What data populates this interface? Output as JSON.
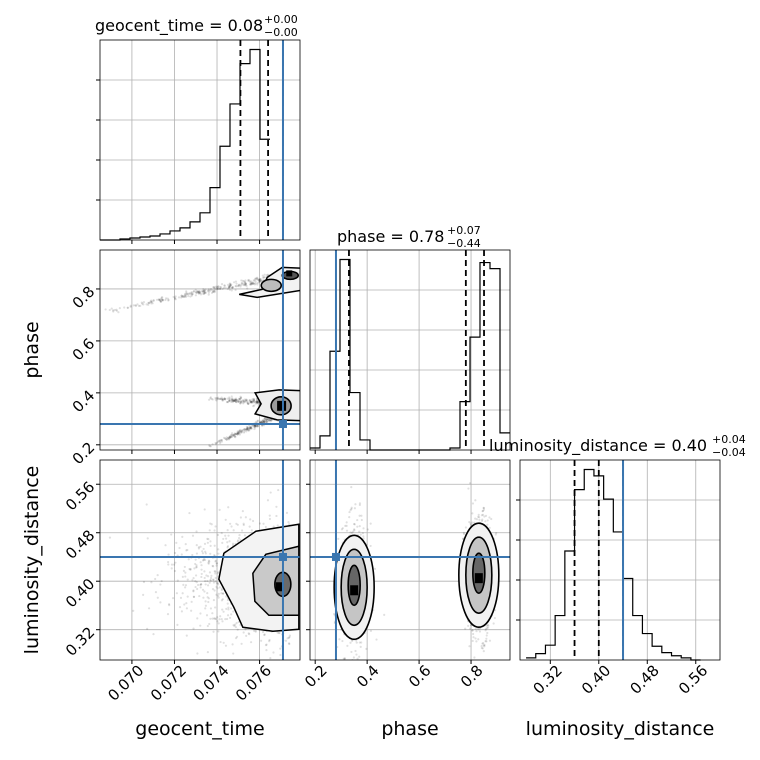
{
  "chart_data": {
    "type": "corner",
    "colors": {
      "truth": "#3a76b0",
      "line": "#000000",
      "grid": "#b0b0b0"
    },
    "params": [
      {
        "name": "geocent_time",
        "label": "geocent_time",
        "range": [
          0.0685,
          0.0779
        ],
        "ticks": [
          0.07,
          0.072,
          0.074,
          0.076
        ],
        "tick_labels": [
          "0.070",
          "0.072",
          "0.074",
          "0.076"
        ],
        "truth": 0.0771,
        "quantiles": [
          0.0751,
          0.0764,
          0.0771
        ],
        "title_main": "geocent_time = 0.08",
        "title_sup": "+0.00",
        "title_sub": "−0.00",
        "hist_edges_start": 0.0685,
        "hist_bin_width": 0.00047,
        "hist": [
          0,
          0,
          1,
          2,
          3,
          4,
          6,
          9,
          12,
          18,
          27,
          52,
          93,
          135,
          175,
          189,
          100
        ]
      },
      {
        "name": "phase",
        "label": "phase",
        "range": [
          0.18,
          0.95
        ],
        "ticks": [
          0.2,
          0.4,
          0.6,
          0.8
        ],
        "tick_labels": [
          "0.2",
          "0.4",
          "0.6",
          "0.8"
        ],
        "truth": 0.28,
        "quantiles": [
          0.33,
          0.78,
          0.85
        ],
        "title_main": "phase = 0.78",
        "title_sup": "+0.07",
        "title_sub": "−0.44",
        "hist_edges_start": 0.18,
        "hist_bin_width": 0.0385,
        "hist": [
          2,
          14,
          98,
          189,
          57,
          10,
          0,
          0,
          0,
          0,
          0,
          0,
          0,
          0,
          2,
          48,
          112,
          186,
          180,
          17
        ]
      },
      {
        "name": "luminosity_distance",
        "label": "luminosity_distance",
        "range": [
          0.27,
          0.6
        ],
        "ticks": [
          0.32,
          0.4,
          0.48,
          0.56
        ],
        "tick_labels": [
          "0.32",
          "0.40",
          "0.48",
          "0.56"
        ],
        "truth": 0.44,
        "quantiles": [
          0.36,
          0.4,
          0.44
        ],
        "title_main": "luminosity_distance = 0.40",
        "title_sup": "+0.04",
        "title_sub": "−0.04",
        "hist_edges_start": 0.28,
        "hist_bin_width": 0.016,
        "hist": [
          2,
          6,
          14,
          42,
          103,
          161,
          180,
          174,
          152,
          121,
          77,
          42,
          25,
          13,
          7,
          4,
          2,
          0
        ]
      }
    ],
    "panels_2d": [
      {
        "x": "geocent_time",
        "y": "phase",
        "tracks": [
          {
            "from": [
              0.0686,
              0.71
            ],
            "to": [
              0.0776,
              0.86
            ]
          },
          {
            "from": [
              0.0735,
              0.38
            ],
            "to": [
              0.0776,
              0.35
            ]
          },
          {
            "from": [
              0.0735,
              0.19
            ],
            "to": [
              0.0776,
              0.34
            ]
          }
        ],
        "contour_centers": [
          [
            0.0773,
            0.86
          ],
          [
            0.0772,
            0.35
          ]
        ]
      },
      {
        "x": "geocent_time",
        "y": "luminosity_distance",
        "cloud_center": [
          0.0764,
          0.4
        ],
        "cloud_spread": [
          0.0017,
          0.045
        ],
        "contour_center": [
          0.077,
          0.39
        ]
      },
      {
        "x": "phase",
        "y": "luminosity_distance",
        "clusters": [
          [
            0.35,
            0.39
          ],
          [
            0.83,
            0.41
          ]
        ],
        "cloud_spread": [
          0.03,
          0.05
        ]
      }
    ]
  }
}
